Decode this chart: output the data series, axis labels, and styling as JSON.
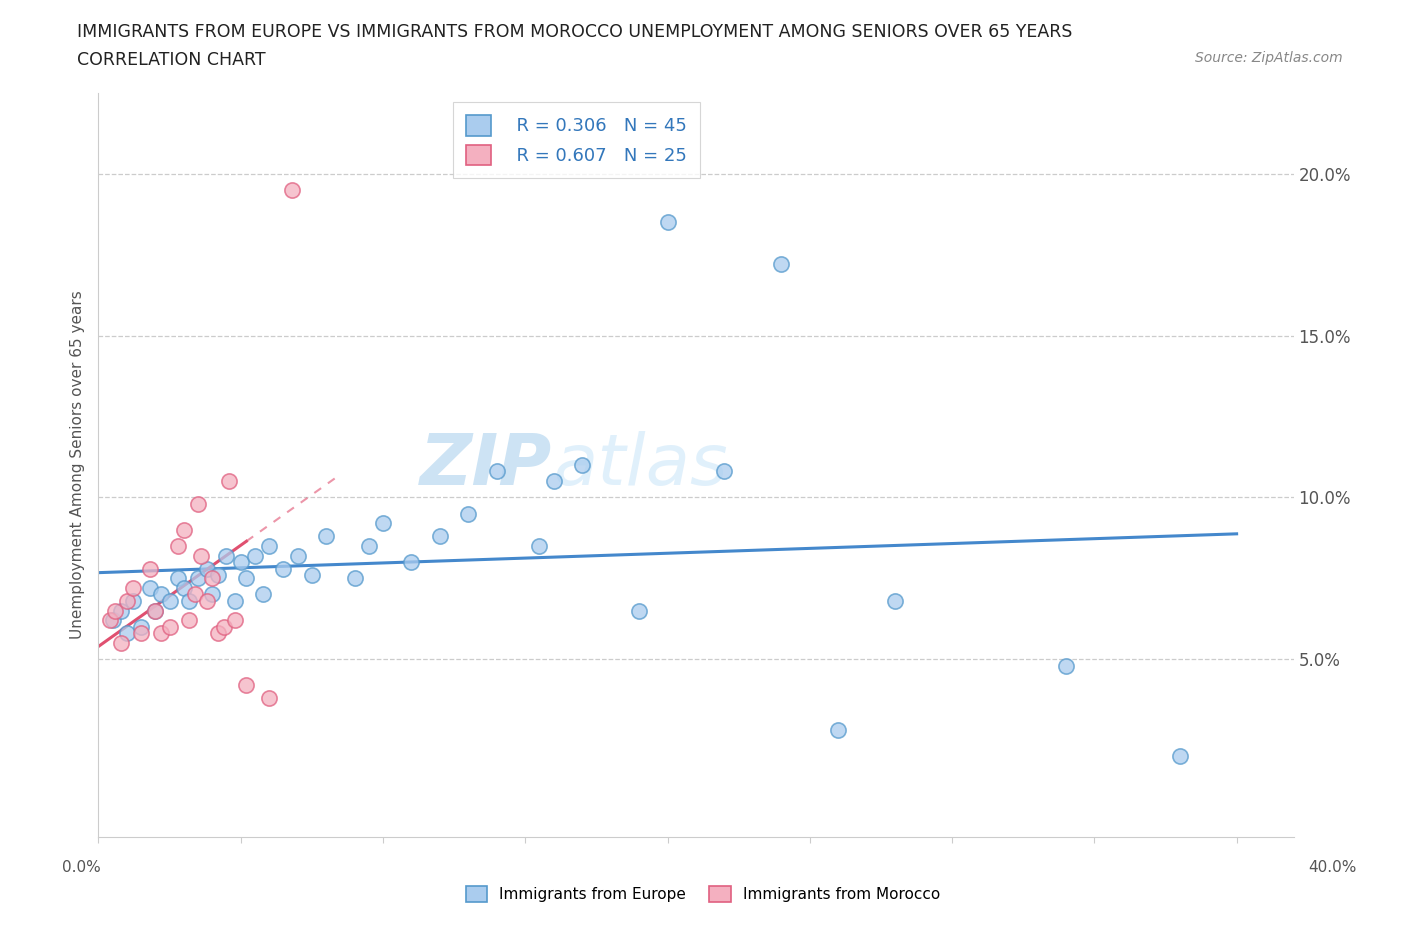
{
  "title_line1": "IMMIGRANTS FROM EUROPE VS IMMIGRANTS FROM MOROCCO UNEMPLOYMENT AMONG SENIORS OVER 65 YEARS",
  "title_line2": "CORRELATION CHART",
  "source": "Source: ZipAtlas.com",
  "ylabel": "Unemployment Among Seniors over 65 years",
  "xlim": [
    0.0,
    0.42
  ],
  "ylim": [
    -0.005,
    0.225
  ],
  "yticks": [
    0.05,
    0.1,
    0.15,
    0.2
  ],
  "ytick_labels": [
    "5.0%",
    "10.0%",
    "15.0%",
    "20.0%"
  ],
  "xtick_label_left": "0.0%",
  "xtick_label_right": "40.0%",
  "blue_R": "R = 0.306",
  "blue_N": "N = 45",
  "pink_R": "R = 0.607",
  "pink_N": "N = 25",
  "blue_color": "#aaccee",
  "pink_color": "#f4b0c0",
  "blue_edge": "#5599cc",
  "pink_edge": "#e06080",
  "blue_line_color": "#4488cc",
  "pink_line_color": "#e05070",
  "watermark_zip": "ZIP",
  "watermark_atlas": "atlas",
  "legend_label_europe": "Immigrants from Europe",
  "legend_label_morocco": "Immigrants from Morocco",
  "europe_x": [
    0.005,
    0.008,
    0.01,
    0.012,
    0.015,
    0.018,
    0.02,
    0.022,
    0.025,
    0.028,
    0.03,
    0.032,
    0.035,
    0.038,
    0.04,
    0.042,
    0.045,
    0.048,
    0.05,
    0.052,
    0.055,
    0.058,
    0.06,
    0.065,
    0.07,
    0.075,
    0.08,
    0.09,
    0.095,
    0.1,
    0.11,
    0.12,
    0.13,
    0.14,
    0.155,
    0.16,
    0.17,
    0.19,
    0.2,
    0.22,
    0.24,
    0.26,
    0.28,
    0.34,
    0.38
  ],
  "europe_y": [
    0.062,
    0.065,
    0.058,
    0.068,
    0.06,
    0.072,
    0.065,
    0.07,
    0.068,
    0.075,
    0.072,
    0.068,
    0.075,
    0.078,
    0.07,
    0.076,
    0.082,
    0.068,
    0.08,
    0.075,
    0.082,
    0.07,
    0.085,
    0.078,
    0.082,
    0.076,
    0.088,
    0.075,
    0.085,
    0.092,
    0.08,
    0.088,
    0.095,
    0.108,
    0.085,
    0.105,
    0.11,
    0.065,
    0.185,
    0.108,
    0.172,
    0.028,
    0.068,
    0.048,
    0.02
  ],
  "morocco_x": [
    0.004,
    0.006,
    0.008,
    0.01,
    0.012,
    0.015,
    0.018,
    0.02,
    0.022,
    0.025,
    0.028,
    0.03,
    0.032,
    0.034,
    0.035,
    0.036,
    0.038,
    0.04,
    0.042,
    0.044,
    0.046,
    0.048,
    0.052,
    0.06,
    0.068
  ],
  "morocco_y": [
    0.062,
    0.065,
    0.055,
    0.068,
    0.072,
    0.058,
    0.078,
    0.065,
    0.058,
    0.06,
    0.085,
    0.09,
    0.062,
    0.07,
    0.098,
    0.082,
    0.068,
    0.075,
    0.058,
    0.06,
    0.105,
    0.062,
    0.042,
    0.038,
    0.195
  ]
}
